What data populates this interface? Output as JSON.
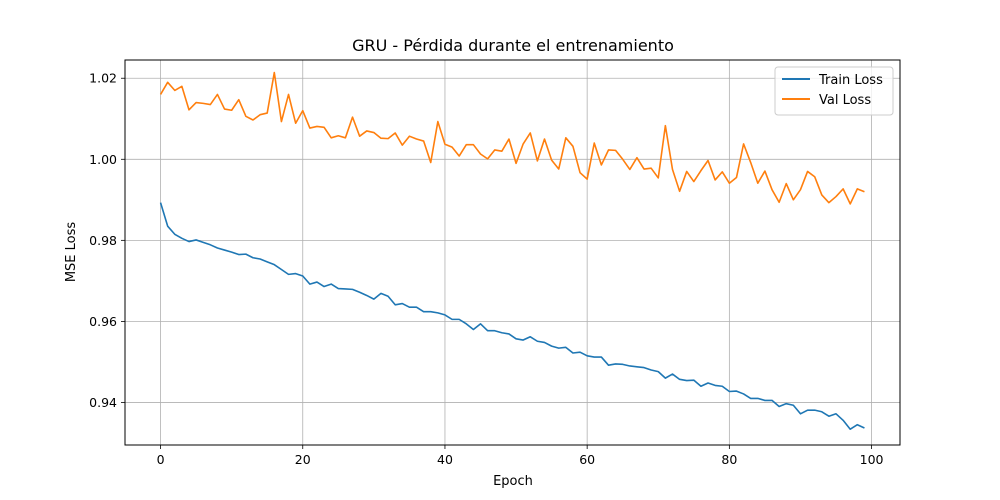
{
  "chart_data": {
    "type": "line",
    "title": "GRU - Pérdida durante el entrenamiento",
    "xlabel": "Epoch",
    "ylabel": "MSE Loss",
    "xlim": [
      -5,
      104
    ],
    "ylim": [
      0.9295,
      1.0245
    ],
    "xticks": [
      0,
      20,
      40,
      60,
      80,
      100
    ],
    "yticks": [
      0.94,
      0.96,
      0.98,
      1.0,
      1.02
    ],
    "ytick_labels": [
      "0.94",
      "0.96",
      "0.98",
      "1.00",
      "1.02"
    ],
    "grid": true,
    "legend": "top-right",
    "series": [
      {
        "name": "Train Loss",
        "color": "#1f77b4",
        "values": [
          0.9893,
          0.9835,
          0.9815,
          0.9805,
          0.9797,
          0.9801,
          0.9795,
          0.9789,
          0.9781,
          0.9776,
          0.9771,
          0.9765,
          0.9766,
          0.9757,
          0.9754,
          0.9747,
          0.974,
          0.9728,
          0.9716,
          0.9718,
          0.9712,
          0.9692,
          0.9697,
          0.9686,
          0.9692,
          0.9681,
          0.968,
          0.9679,
          0.9672,
          0.9664,
          0.9655,
          0.9669,
          0.9662,
          0.9641,
          0.9644,
          0.9635,
          0.9635,
          0.9624,
          0.9624,
          0.9621,
          0.9616,
          0.9605,
          0.9605,
          0.9594,
          0.958,
          0.9594,
          0.9577,
          0.9577,
          0.9572,
          0.9569,
          0.9557,
          0.9554,
          0.9562,
          0.9551,
          0.9548,
          0.9539,
          0.9534,
          0.9536,
          0.9522,
          0.9524,
          0.9515,
          0.9512,
          0.9512,
          0.9492,
          0.9495,
          0.9494,
          0.949,
          0.9488,
          0.9486,
          0.948,
          0.9476,
          0.946,
          0.947,
          0.9457,
          0.9454,
          0.9455,
          0.944,
          0.9448,
          0.9442,
          0.944,
          0.9427,
          0.9428,
          0.9421,
          0.941,
          0.941,
          0.9405,
          0.9405,
          0.939,
          0.9397,
          0.9393,
          0.9372,
          0.9381,
          0.9381,
          0.9377,
          0.9366,
          0.9372,
          0.9356,
          0.9334,
          0.9345,
          0.9337
        ]
      },
      {
        "name": "Val Loss",
        "color": "#ff7f0e",
        "values": [
          1.016,
          1.019,
          1.017,
          1.018,
          1.0122,
          1.014,
          1.0138,
          1.0135,
          1.016,
          1.0124,
          1.0121,
          1.0147,
          1.0106,
          1.0097,
          1.011,
          1.0114,
          1.0214,
          1.0093,
          1.016,
          1.0089,
          1.012,
          1.0077,
          1.0081,
          1.0079,
          1.0053,
          1.0058,
          1.0053,
          1.0104,
          1.0057,
          1.007,
          1.0066,
          1.0052,
          1.0051,
          1.0065,
          1.0035,
          1.0057,
          1.005,
          1.0045,
          0.9992,
          1.0093,
          1.0037,
          1.003,
          1.0008,
          1.0036,
          1.0036,
          1.0013,
          1.0001,
          1.0023,
          1.002,
          1.005,
          0.999,
          1.0038,
          1.0065,
          0.9996,
          1.005,
          0.9998,
          0.9976,
          1.0053,
          1.0032,
          0.9967,
          0.9951,
          1.004,
          0.9986,
          1.0023,
          1.0022,
          1.0,
          0.9975,
          1.0004,
          0.9976,
          0.9978,
          0.9954,
          1.0083,
          0.9975,
          0.9921,
          0.997,
          0.9945,
          0.9972,
          0.9997,
          0.9949,
          0.9969,
          0.9941,
          0.9955,
          1.0038,
          0.9992,
          0.9941,
          0.9971,
          0.9925,
          0.9894,
          0.994,
          0.99,
          0.9925,
          0.997,
          0.9957,
          0.9912,
          0.9893,
          0.9908,
          0.9927,
          0.989,
          0.9927,
          0.992
        ]
      }
    ]
  }
}
